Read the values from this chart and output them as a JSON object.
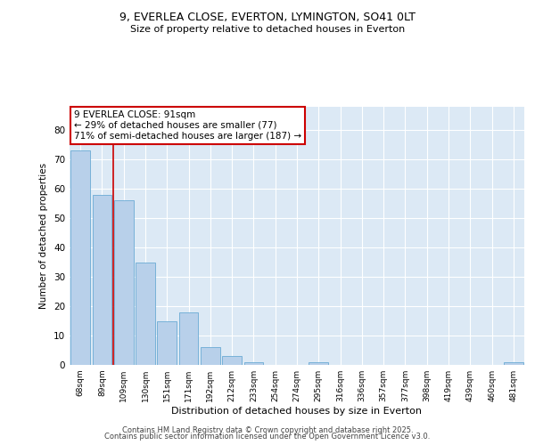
{
  "title1": "9, EVERLEA CLOSE, EVERTON, LYMINGTON, SO41 0LT",
  "title2": "Size of property relative to detached houses in Everton",
  "xlabel": "Distribution of detached houses by size in Everton",
  "ylabel": "Number of detached properties",
  "bar_labels": [
    "68sqm",
    "89sqm",
    "109sqm",
    "130sqm",
    "151sqm",
    "171sqm",
    "192sqm",
    "212sqm",
    "233sqm",
    "254sqm",
    "274sqm",
    "295sqm",
    "316sqm",
    "336sqm",
    "357sqm",
    "377sqm",
    "398sqm",
    "419sqm",
    "439sqm",
    "460sqm",
    "481sqm"
  ],
  "bar_values": [
    73,
    58,
    56,
    35,
    15,
    18,
    6,
    3,
    1,
    0,
    0,
    1,
    0,
    0,
    0,
    0,
    0,
    0,
    0,
    0,
    1
  ],
  "bar_color": "#b8d0ea",
  "bar_edge_color": "#6aaad4",
  "bg_color": "#dce9f5",
  "vline_x": 1.5,
  "vline_color": "#cc0000",
  "annotation_text": "9 EVERLEA CLOSE: 91sqm\n← 29% of detached houses are smaller (77)\n71% of semi-detached houses are larger (187) →",
  "annotation_box_color": "#cc0000",
  "ylim": [
    0,
    88
  ],
  "yticks": [
    0,
    10,
    20,
    30,
    40,
    50,
    60,
    70,
    80
  ],
  "footer1": "Contains HM Land Registry data © Crown copyright and database right 2025.",
  "footer2": "Contains public sector information licensed under the Open Government Licence v3.0."
}
